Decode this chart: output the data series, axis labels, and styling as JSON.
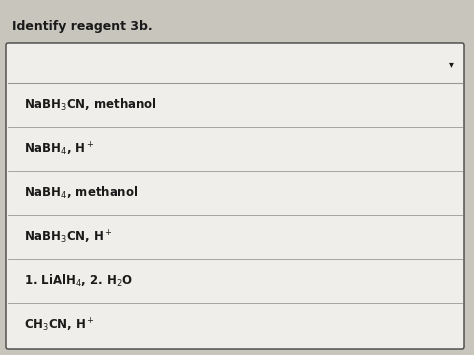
{
  "title": "Identify reagent 3b.",
  "title_fontsize": 9,
  "options": [
    "NaBH$_3$CN, methanol",
    "NaBH$_4$, H$^+$",
    "NaBH$_4$, methanol",
    "NaBH$_3$CN, H$^+$",
    "1. LiAlH$_4$, 2. H$_2$O",
    "CH$_3$CN, H$^+$"
  ],
  "background_color": "#c8c5bc",
  "box_bg_color": "#f0eeea",
  "box_border_color": "#444444",
  "text_color": "#1a1a1a",
  "line_color": "#999999",
  "dropdown_arrow": "▾",
  "option_fontsize": 8.5
}
